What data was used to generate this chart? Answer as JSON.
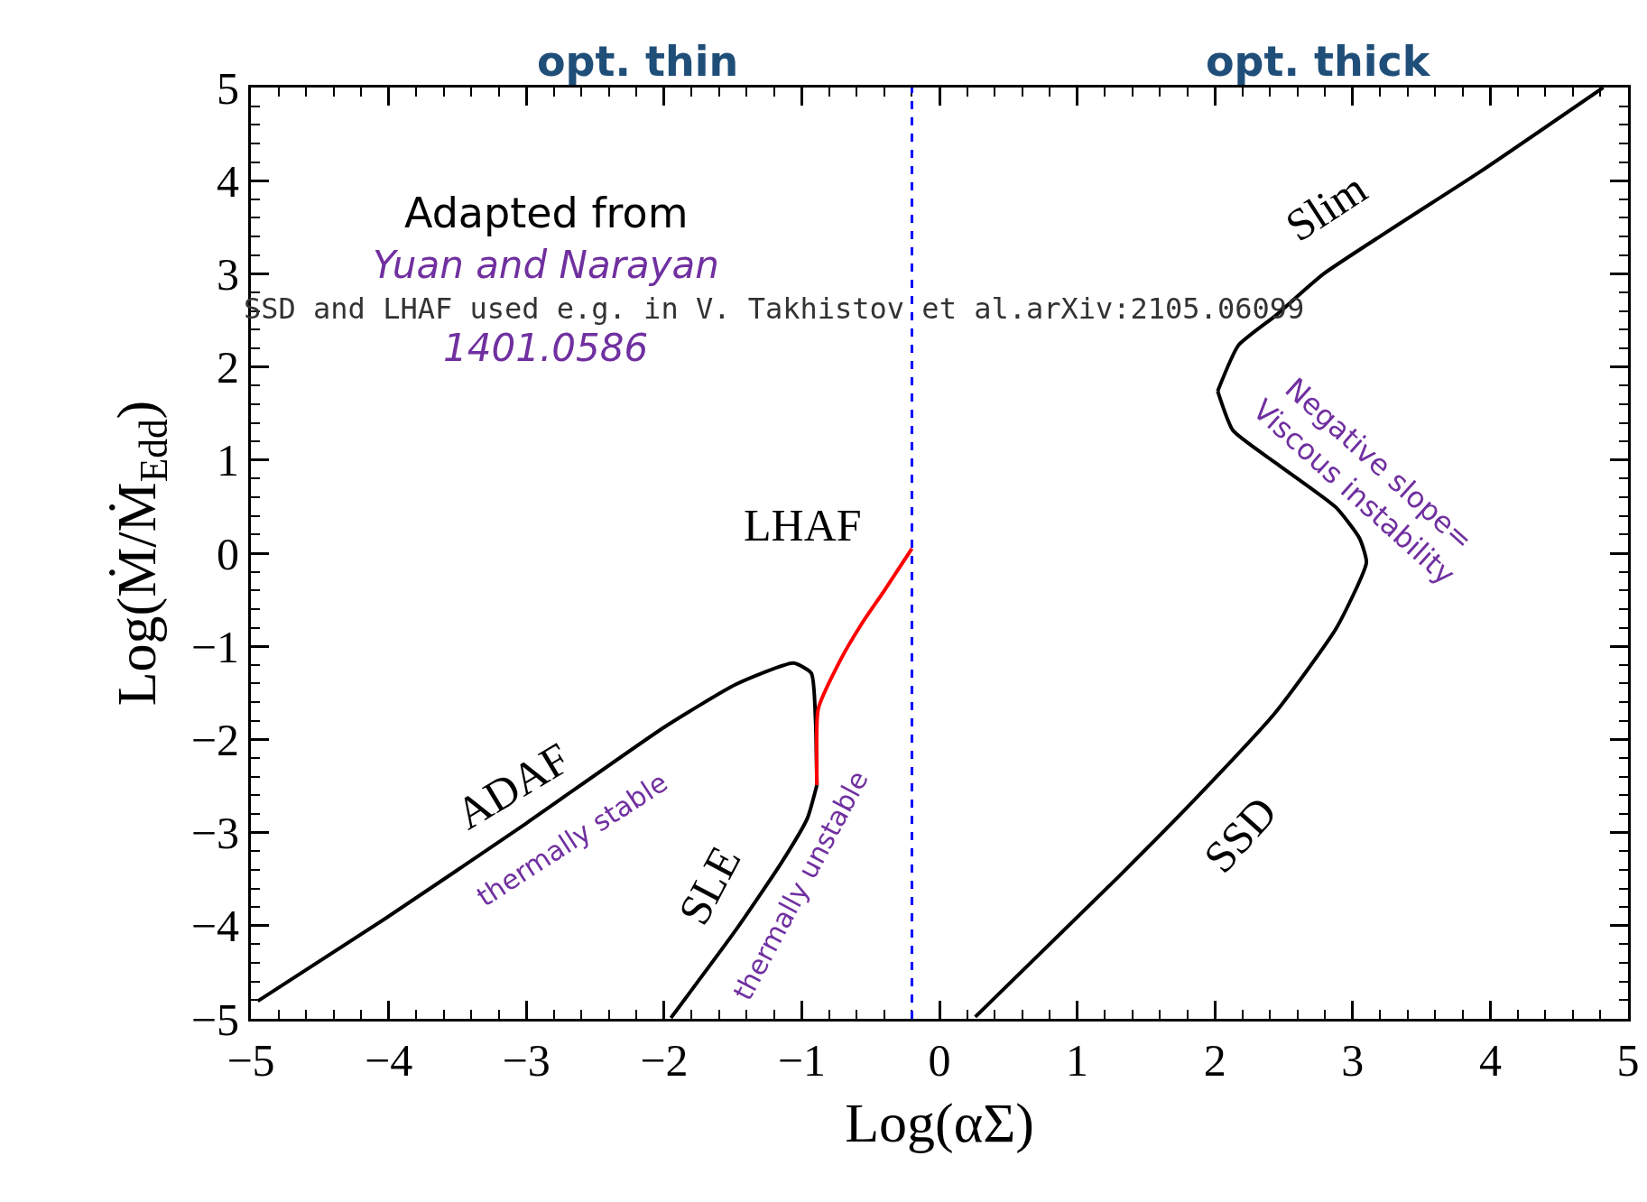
{
  "chart_data": {
    "type": "line",
    "xlabel": "Log(αΣ)",
    "ylabel": "Log(Ṁ/Ṁ$_{Edd}$)",
    "xlim": [
      -5,
      5
    ],
    "ylim": [
      -5,
      5
    ],
    "xticks": [
      -5,
      -4,
      -3,
      -2,
      -1,
      0,
      1,
      2,
      3,
      4,
      5
    ],
    "yticks": [
      -5,
      -4,
      -3,
      -2,
      -1,
      0,
      1,
      2,
      3,
      4,
      5
    ],
    "grid": false,
    "legend": false,
    "marker": "none",
    "line_style": "solid",
    "series": [
      {
        "name": "ADAF",
        "color": "#000000",
        "x": [
          -4.95,
          -4.01,
          -3.0,
          -2.0,
          -1.48,
          -1.06,
          -0.93,
          -0.9,
          -0.89
        ],
        "values": [
          -4.81,
          -3.91,
          -2.9,
          -1.87,
          -1.41,
          -1.18,
          -1.29,
          -1.79,
          -2.49
        ]
      },
      {
        "name": "SLE",
        "color": "#000000",
        "x": [
          -1.95,
          -1.48,
          -1.15,
          -0.96,
          -0.89
        ],
        "values": [
          -4.99,
          -4.05,
          -3.33,
          -2.85,
          -2.49
        ]
      },
      {
        "name": "LHAF",
        "color": "#ff0000",
        "x": [
          -0.89,
          -0.88,
          -0.72,
          -0.57,
          -0.4,
          -0.2
        ],
        "values": [
          -2.49,
          -1.67,
          -1.15,
          -0.77,
          -0.4,
          0.05
        ]
      },
      {
        "name": "SSD",
        "color": "#000000",
        "x": [
          0.26,
          1.31,
          1.87,
          2.44,
          2.88,
          3.1,
          3.05,
          2.88,
          2.44,
          2.13,
          2.02
        ],
        "values": [
          -4.98,
          -3.46,
          -2.62,
          -1.71,
          -0.81,
          -0.1,
          0.16,
          0.49,
          0.97,
          1.32,
          1.74
        ]
      },
      {
        "name": "Slim",
        "color": "#000000",
        "x": [
          2.02,
          2.17,
          2.44,
          2.79,
          3.93,
          4.82
        ],
        "values": [
          1.74,
          2.23,
          2.55,
          3.0,
          4.1,
          5.0
        ]
      }
    ],
    "ref_lines": [
      {
        "axis": "x",
        "value": -0.2,
        "color": "#0000ff",
        "line_style": "dashed"
      }
    ],
    "annotations": [
      "opt. thin",
      "opt. thick",
      "Adapted from",
      "Yuan and Narayan",
      "1401.0586",
      "SSD and LHAF used e.g. in V. Takhistov et al.arXiv:2105.06099",
      "thermally stable",
      "thermally unstable",
      "Negative slope=\nViscous instability"
    ]
  }
}
